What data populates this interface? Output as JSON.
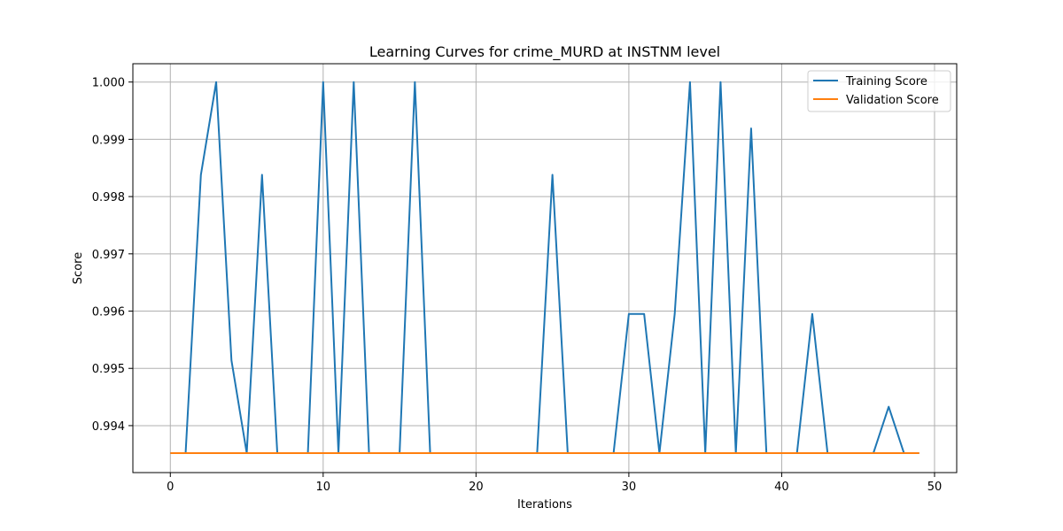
{
  "chart_data": {
    "type": "line",
    "title": "Learning Curves for crime_MURD at INSTNM level",
    "xlabel": "Iterations",
    "ylabel": "Score",
    "xlim": [
      -2.45,
      51.45
    ],
    "ylim": [
      0.99318,
      1.00032
    ],
    "xticks": [
      0,
      10,
      20,
      30,
      40,
      50
    ],
    "yticks": [
      0.994,
      0.995,
      0.996,
      0.997,
      0.998,
      0.999,
      1.0
    ],
    "xtick_labels": [
      "0",
      "10",
      "20",
      "30",
      "40",
      "50"
    ],
    "ytick_labels": [
      "0.994",
      "0.995",
      "0.996",
      "0.997",
      "0.998",
      "0.999",
      "1.000"
    ],
    "grid": true,
    "legend_position": "upper right",
    "x": [
      0,
      1,
      2,
      3,
      4,
      5,
      6,
      7,
      8,
      9,
      10,
      11,
      12,
      13,
      14,
      15,
      16,
      17,
      18,
      19,
      20,
      21,
      22,
      23,
      24,
      25,
      26,
      27,
      28,
      29,
      30,
      31,
      32,
      33,
      34,
      35,
      36,
      37,
      38,
      39,
      40,
      41,
      42,
      43,
      44,
      45,
      46,
      47,
      48,
      49
    ],
    "series": [
      {
        "name": "Training Score",
        "color": "#1f77b4",
        "values": [
          0.99352,
          0.99352,
          0.99838,
          1.0,
          0.99514,
          0.99352,
          0.99838,
          0.99352,
          0.99352,
          0.99352,
          1.0,
          0.99352,
          1.0,
          0.99352,
          0.99352,
          0.99352,
          1.0,
          0.99352,
          0.99352,
          0.99352,
          0.99352,
          0.99352,
          0.99352,
          0.99352,
          0.99352,
          0.99838,
          0.99352,
          0.99352,
          0.99352,
          0.99352,
          0.99595,
          0.99595,
          0.99352,
          0.99595,
          1.0,
          0.99352,
          1.0,
          0.99352,
          0.99919,
          0.99352,
          0.99352,
          0.99352,
          0.99595,
          0.99352,
          0.99352,
          0.99352,
          0.99352,
          0.99433,
          0.99352,
          0.99352
        ]
      },
      {
        "name": "Validation Score",
        "color": "#ff7f0e",
        "values": [
          0.99352,
          0.99352,
          0.99352,
          0.99352,
          0.99352,
          0.99352,
          0.99352,
          0.99352,
          0.99352,
          0.99352,
          0.99352,
          0.99352,
          0.99352,
          0.99352,
          0.99352,
          0.99352,
          0.99352,
          0.99352,
          0.99352,
          0.99352,
          0.99352,
          0.99352,
          0.99352,
          0.99352,
          0.99352,
          0.99352,
          0.99352,
          0.99352,
          0.99352,
          0.99352,
          0.99352,
          0.99352,
          0.99352,
          0.99352,
          0.99352,
          0.99352,
          0.99352,
          0.99352,
          0.99352,
          0.99352,
          0.99352,
          0.99352,
          0.99352,
          0.99352,
          0.99352,
          0.99352,
          0.99352,
          0.99352,
          0.99352,
          0.99352
        ]
      }
    ]
  }
}
